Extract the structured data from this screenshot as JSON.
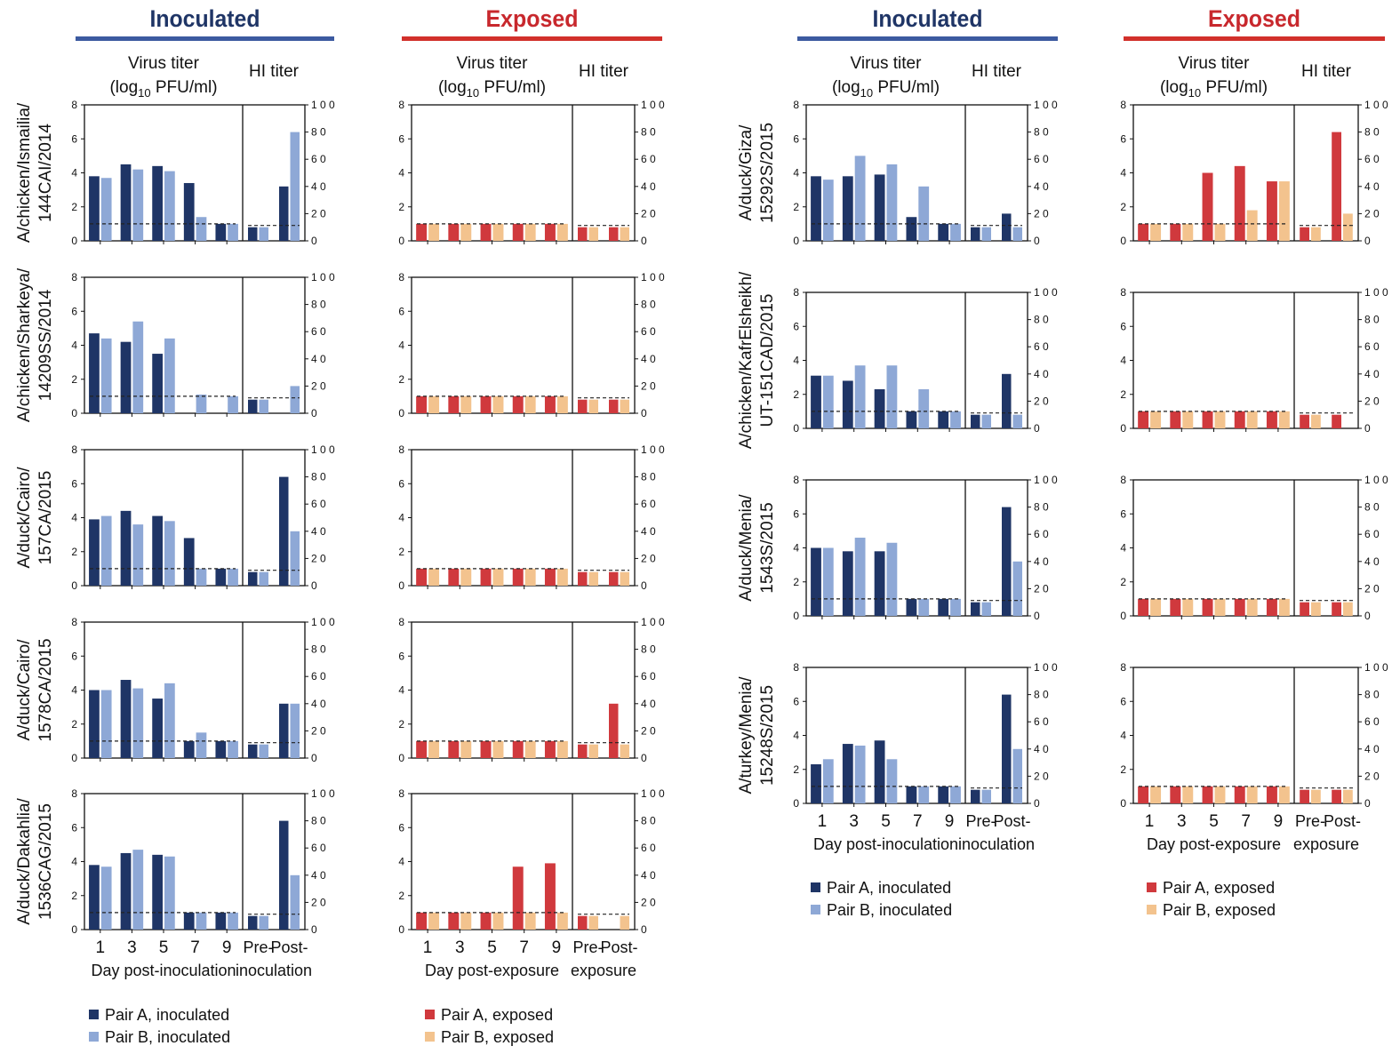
{
  "colors": {
    "inoc_dark": "#1f3566",
    "inoc_light": "#8ea8d6",
    "exp_dark": "#d0393d",
    "exp_light": "#f3c38e",
    "header_inoc": "#1f3566",
    "header_exp": "#c8282d",
    "bar_inoc_line": "#3c5aa0",
    "bar_exp_line": "#d2302b"
  },
  "headers": {
    "inoculated": "Inoculated",
    "exposed": "Exposed",
    "virus_titer_line1": "Virus titer",
    "virus_titer_line2_pre": "(log",
    "virus_titer_sub": "10",
    "virus_titer_line2_post": " PFU/ml)",
    "hi_titer": "HI titer"
  },
  "axes": {
    "left_ticks": [
      "0",
      "2",
      "4",
      "6",
      "8"
    ],
    "right_ticks": [
      "0",
      "2 0",
      "4 0",
      "6 0",
      "8 0",
      "1 0 0"
    ],
    "days": [
      "1",
      "3",
      "5",
      "7",
      "9"
    ],
    "pre": "Pre-",
    "post": "Post-",
    "xlabel_inoculated": "Day post-inoculation",
    "xlabel_exposed": "Day post-exposure",
    "hi_label_inoculated": "inoculation",
    "hi_label_exposed": "exposure"
  },
  "legends": {
    "inoculated": [
      "Pair A, inoculated",
      "Pair B, inoculated"
    ],
    "exposed": [
      "Pair A, exposed",
      "Pair B, exposed"
    ]
  },
  "chart_data": [
    {
      "type": "bar",
      "strain": [
        "A/chicken/Ismailia/",
        "144CAI/2014"
      ],
      "group": "inoculated",
      "pairA": [
        3.8,
        4.5,
        4.4,
        3.4,
        1.0
      ],
      "pairB": [
        3.7,
        4.2,
        4.1,
        1.4,
        1.0
      ],
      "hiA": [
        10,
        40
      ],
      "hiB": [
        10,
        80
      ],
      "ylim": [
        0,
        8
      ],
      "y2lim": [
        0,
        100
      ],
      "detection_limit": 1.0
    },
    {
      "type": "bar",
      "strain": [
        "A/chicken/Ismailia/",
        "144CAI/2014"
      ],
      "group": "exposed",
      "pairA": [
        1.0,
        1.0,
        1.0,
        1.0,
        1.0
      ],
      "pairB": [
        1.0,
        1.0,
        1.0,
        1.0,
        1.0
      ],
      "hiA": [
        10,
        10
      ],
      "hiB": [
        10,
        10
      ],
      "ylim": [
        0,
        8
      ],
      "y2lim": [
        0,
        100
      ],
      "detection_limit": 1.0
    },
    {
      "type": "bar",
      "strain": [
        "A/chicken/Sharkeya/",
        "14209SS/2014"
      ],
      "group": "inoculated",
      "pairA": [
        4.7,
        4.2,
        3.5,
        0,
        0
      ],
      "pairB": [
        4.4,
        5.4,
        4.4,
        1.1,
        1.0
      ],
      "hiA": [
        10,
        0
      ],
      "hiB": [
        10,
        20
      ],
      "ylim": [
        0,
        8
      ],
      "y2lim": [
        0,
        100
      ],
      "detection_limit": 1.0
    },
    {
      "type": "bar",
      "strain": [
        "A/chicken/Sharkeya/",
        "14209SS/2014"
      ],
      "group": "exposed",
      "pairA": [
        1.0,
        1.0,
        1.0,
        1.0,
        1.0
      ],
      "pairB": [
        1.0,
        1.0,
        1.0,
        1.0,
        1.0
      ],
      "hiA": [
        10,
        10
      ],
      "hiB": [
        10,
        10
      ],
      "ylim": [
        0,
        8
      ],
      "y2lim": [
        0,
        100
      ],
      "detection_limit": 1.0
    },
    {
      "type": "bar",
      "strain": [
        "A/duck/Cairo/",
        "157CA/2015"
      ],
      "group": "inoculated",
      "pairA": [
        3.9,
        4.4,
        4.1,
        2.8,
        1.0
      ],
      "pairB": [
        4.1,
        3.6,
        3.8,
        1.0,
        1.0
      ],
      "hiA": [
        10,
        80
      ],
      "hiB": [
        10,
        40
      ],
      "ylim": [
        0,
        8
      ],
      "y2lim": [
        0,
        100
      ],
      "detection_limit": 1.0
    },
    {
      "type": "bar",
      "strain": [
        "A/duck/Cairo/",
        "157CA/2015"
      ],
      "group": "exposed",
      "pairA": [
        1.0,
        1.0,
        1.0,
        1.0,
        1.0
      ],
      "pairB": [
        1.0,
        1.0,
        1.0,
        1.0,
        1.0
      ],
      "hiA": [
        10,
        10
      ],
      "hiB": [
        10,
        10
      ],
      "ylim": [
        0,
        8
      ],
      "y2lim": [
        0,
        100
      ],
      "detection_limit": 1.0
    },
    {
      "type": "bar",
      "strain": [
        "A/duck/Cairo/",
        "1578CA/2015"
      ],
      "group": "inoculated",
      "pairA": [
        4.0,
        4.6,
        3.5,
        1.0,
        1.0
      ],
      "pairB": [
        4.0,
        4.1,
        4.4,
        1.5,
        1.0
      ],
      "hiA": [
        10,
        40
      ],
      "hiB": [
        10,
        40
      ],
      "ylim": [
        0,
        8
      ],
      "y2lim": [
        0,
        100
      ],
      "detection_limit": 1.0
    },
    {
      "type": "bar",
      "strain": [
        "A/duck/Cairo/",
        "1578CA/2015"
      ],
      "group": "exposed",
      "pairA": [
        1.0,
        1.0,
        1.0,
        1.0,
        1.0
      ],
      "pairB": [
        1.0,
        1.0,
        1.0,
        1.0,
        1.0
      ],
      "hiA": [
        10,
        40
      ],
      "hiB": [
        10,
        10
      ],
      "ylim": [
        0,
        8
      ],
      "y2lim": [
        0,
        100
      ],
      "detection_limit": 1.0
    },
    {
      "type": "bar",
      "strain": [
        "A/duck/Dakahlia/",
        "1536CAG/2015"
      ],
      "group": "inoculated",
      "pairA": [
        3.8,
        4.5,
        4.4,
        1.0,
        1.0
      ],
      "pairB": [
        3.7,
        4.7,
        4.3,
        1.0,
        1.0
      ],
      "hiA": [
        10,
        80
      ],
      "hiB": [
        10,
        40
      ],
      "ylim": [
        0,
        8
      ],
      "y2lim": [
        0,
        100
      ],
      "detection_limit": 1.0
    },
    {
      "type": "bar",
      "strain": [
        "A/duck/Dakahlia/",
        "1536CAG/2015"
      ],
      "group": "exposed",
      "pairA": [
        1.0,
        1.0,
        1.0,
        3.7,
        3.9
      ],
      "pairB": [
        1.0,
        1.0,
        1.0,
        1.0,
        1.0
      ],
      "hiA": [
        10,
        0
      ],
      "hiB": [
        10,
        10
      ],
      "ylim": [
        0,
        8
      ],
      "y2lim": [
        0,
        100
      ],
      "detection_limit": 1.0
    },
    {
      "type": "bar",
      "strain": [
        "A/duck/Giza/",
        "15292S/2015"
      ],
      "group": "inoculated",
      "pairA": [
        3.8,
        3.8,
        3.9,
        1.4,
        1.0
      ],
      "pairB": [
        3.6,
        5.0,
        4.5,
        3.2,
        1.0
      ],
      "hiA": [
        10,
        20
      ],
      "hiB": [
        10,
        10
      ],
      "ylim": [
        0,
        8
      ],
      "y2lim": [
        0,
        100
      ],
      "detection_limit": 1.0
    },
    {
      "type": "bar",
      "strain": [
        "A/duck/Giza/",
        "15292S/2015"
      ],
      "group": "exposed",
      "pairA": [
        1.0,
        1.0,
        4.0,
        4.4,
        3.5
      ],
      "pairB": [
        1.0,
        1.0,
        1.0,
        1.8,
        3.5
      ],
      "hiA": [
        10,
        80
      ],
      "hiB": [
        10,
        20
      ],
      "ylim": [
        0,
        8
      ],
      "y2lim": [
        0,
        100
      ],
      "detection_limit": 1.0
    },
    {
      "type": "bar",
      "strain": [
        "A/chicken/KafrElsheikh/",
        "UT-151CAD/2015"
      ],
      "group": "inoculated",
      "pairA": [
        3.1,
        2.8,
        2.3,
        1.0,
        1.0
      ],
      "pairB": [
        3.1,
        3.7,
        3.7,
        2.3,
        1.0
      ],
      "hiA": [
        10,
        40
      ],
      "hiB": [
        10,
        10
      ],
      "ylim": [
        0,
        8
      ],
      "y2lim": [
        0,
        100
      ],
      "detection_limit": 1.0
    },
    {
      "type": "bar",
      "strain": [
        "A/chicken/KafrElsheikh/",
        "UT-151CAD/2015"
      ],
      "group": "exposed",
      "pairA": [
        1.0,
        1.0,
        1.0,
        1.0,
        1.0
      ],
      "pairB": [
        1.0,
        1.0,
        1.0,
        1.0,
        1.0
      ],
      "hiA": [
        10,
        10
      ],
      "hiB": [
        10,
        0
      ],
      "ylim": [
        0,
        8
      ],
      "y2lim": [
        0,
        100
      ],
      "detection_limit": 1.0
    },
    {
      "type": "bar",
      "strain": [
        "A/duck/Menia/",
        "1543S/2015"
      ],
      "group": "inoculated",
      "pairA": [
        4.0,
        3.8,
        3.8,
        1.0,
        1.0
      ],
      "pairB": [
        4.0,
        4.6,
        4.3,
        1.0,
        1.0
      ],
      "hiA": [
        10,
        80
      ],
      "hiB": [
        10,
        40
      ],
      "ylim": [
        0,
        8
      ],
      "y2lim": [
        0,
        100
      ],
      "detection_limit": 1.0
    },
    {
      "type": "bar",
      "strain": [
        "A/duck/Menia/",
        "1543S/2015"
      ],
      "group": "exposed",
      "pairA": [
        1.0,
        1.0,
        1.0,
        1.0,
        1.0
      ],
      "pairB": [
        1.0,
        1.0,
        1.0,
        1.0,
        1.0
      ],
      "hiA": [
        10,
        10
      ],
      "hiB": [
        10,
        10
      ],
      "ylim": [
        0,
        8
      ],
      "y2lim": [
        0,
        100
      ],
      "detection_limit": 1.0
    },
    {
      "type": "bar",
      "strain": [
        "A/turkey/Menia/",
        "15248S/2015"
      ],
      "group": "inoculated",
      "pairA": [
        2.3,
        3.5,
        3.7,
        1.0,
        1.0
      ],
      "pairB": [
        2.6,
        3.4,
        2.6,
        1.0,
        1.0
      ],
      "hiA": [
        10,
        80
      ],
      "hiB": [
        10,
        40
      ],
      "ylim": [
        0,
        8
      ],
      "y2lim": [
        0,
        100
      ],
      "detection_limit": 1.0
    },
    {
      "type": "bar",
      "strain": [
        "A/turkey/Menia/",
        "15248S/2015"
      ],
      "group": "exposed",
      "pairA": [
        1.0,
        1.0,
        1.0,
        1.0,
        1.0
      ],
      "pairB": [
        1.0,
        1.0,
        1.0,
        1.0,
        1.0
      ],
      "hiA": [
        10,
        10
      ],
      "hiB": [
        10,
        10
      ],
      "ylim": [
        0,
        8
      ],
      "y2lim": [
        0,
        100
      ],
      "detection_limit": 1.0
    }
  ]
}
